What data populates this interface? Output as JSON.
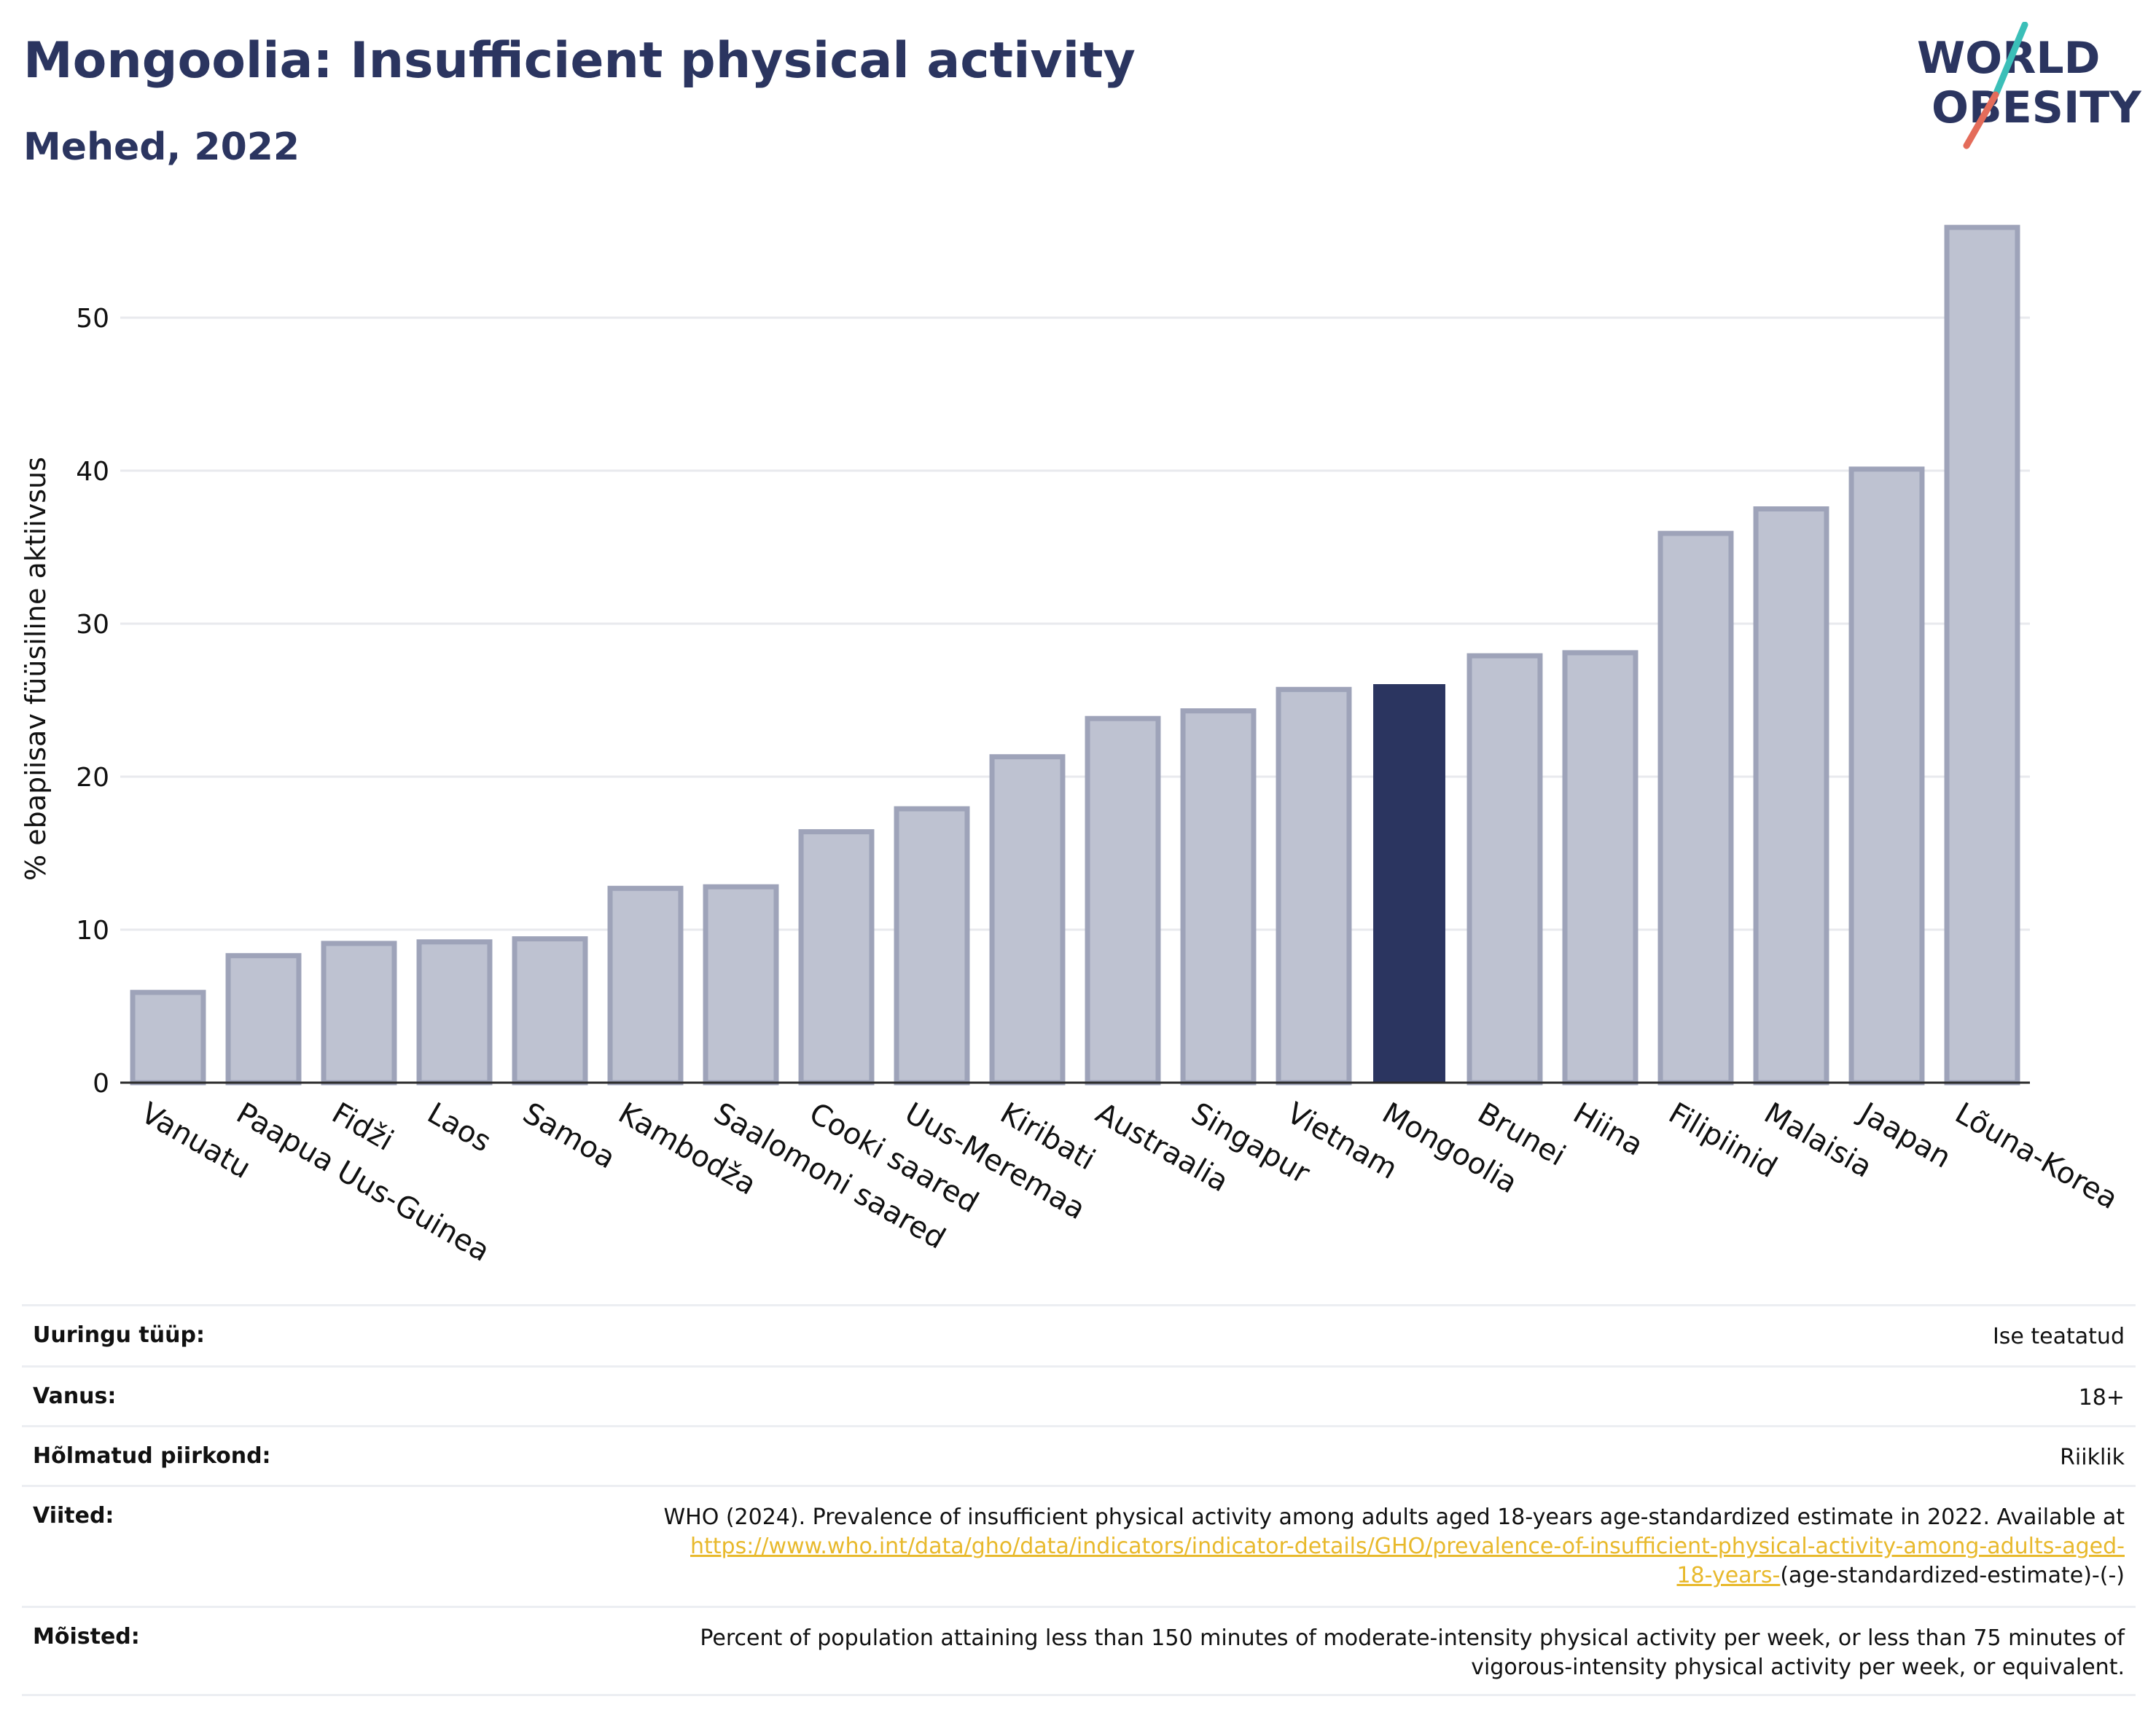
{
  "header": {
    "title": "Mongoolia: Insufficient physical activity",
    "subtitle": "Mehed, 2022"
  },
  "logo": {
    "line1": "WORLD",
    "line2": "OBESITY",
    "icon": "world-obesity-logo",
    "colors": {
      "text": "#2b3560",
      "slash_top": "#3bbfb8",
      "slash_bottom": "#e46c5a"
    }
  },
  "chart_data": {
    "type": "bar",
    "title": "Mongoolia: Insufficient physical activity",
    "subtitle": "Mehed, 2022",
    "xlabel": "",
    "ylabel": "% ebapiisav füüsiline aktiivsus",
    "ylim": [
      0,
      56
    ],
    "yticks": [
      0,
      10,
      20,
      30,
      40,
      50
    ],
    "grid": true,
    "highlight": "Mongoolia",
    "colors": {
      "bar": "#bec2d1",
      "bar_edge": "#9ea3b9",
      "highlight": "#2b3560",
      "grid": "#e8eaee"
    },
    "categories": [
      "Vanuatu",
      "Paapua Uus-Guinea",
      "Fidži",
      "Laos",
      "Samoa",
      "Kambodža",
      "Saalomoni saared",
      "Cooki saared",
      "Uus-Meremaa",
      "Kiribati",
      "Austraalia",
      "Singapur",
      "Vietnam",
      "Mongoolia",
      "Brunei",
      "Hiina",
      "Filipiinid",
      "Malaisia",
      "Jaapan",
      "Lõuna-Korea"
    ],
    "values": [
      5.9,
      8.3,
      9.1,
      9.2,
      9.4,
      12.7,
      12.8,
      16.4,
      17.9,
      21.3,
      23.8,
      24.3,
      25.7,
      26.0,
      27.9,
      28.1,
      35.9,
      37.5,
      40.1,
      55.9
    ]
  },
  "info": {
    "rows": [
      {
        "label": "Uuringu tüüp:",
        "value": "Ise teatatud"
      },
      {
        "label": "Vanus:",
        "value": "18+"
      },
      {
        "label": "Hõlmatud piirkond:",
        "value": "Riiklik"
      },
      {
        "label": "Viited:",
        "value_pre": "WHO (2024). Prevalence of insufficient physical activity among adults aged 18-years age-standardized estimate in 2022. Available at",
        "link_line1": "https://www.who.int/data/gho/data/indicators/indicator-details/GHO/prevalence-of-insufficient-physical-activity-among-adults-aged-",
        "link_line2": "18-years-",
        "value_post": "(age-standardized-estimate)-(-)"
      },
      {
        "label": "Mõisted:",
        "value_line1": "Percent of population attaining less than 150 minutes of moderate-intensity physical activity per week, or less than 75 minutes of",
        "value_line2": "vigorous-intensity physical activity per week, or equivalent."
      }
    ]
  }
}
